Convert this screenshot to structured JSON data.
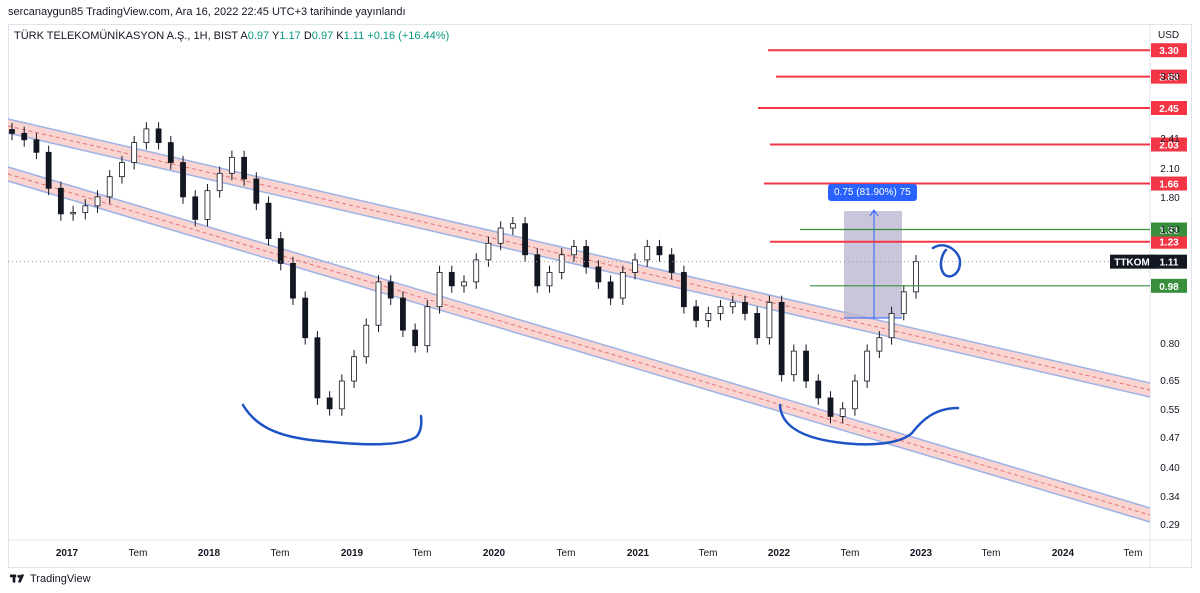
{
  "header": {
    "published": "sercanaygun85 TradingView.com, Ara 16, 2022 22:45 UTC+3 tarihinde yayınlandı"
  },
  "legend": {
    "symbol": "TÜRK TELEKOMÜNİKASYON A.Ş., 1H, BIST",
    "a_label": "A",
    "a_value": "0.97",
    "y_label": "Y",
    "y_value": "1.17",
    "d_label": "D",
    "d_value": "0.97",
    "k_label": "K",
    "k_value": "1.11",
    "change": "+0.16 (+16.44%)"
  },
  "currency": "USD",
  "footer": {
    "brand": "TradingView"
  },
  "measure": {
    "label": "0.75 (81.90%) 75"
  },
  "chart_data": {
    "type": "candlestick",
    "scale": "log",
    "ylim": [
      0.27,
      3.7
    ],
    "y_ticks": [
      "3.50",
      "2.41",
      "2.10",
      "1.80",
      "1.50",
      "0.80",
      "0.65",
      "0.55",
      "0.47",
      "0.40",
      "0.34",
      "0.29"
    ],
    "x_ticks": [
      {
        "label": "2017",
        "bold": true
      },
      {
        "label": "Tem",
        "bold": false
      },
      {
        "label": "2018",
        "bold": true
      },
      {
        "label": "Tem",
        "bold": false
      },
      {
        "label": "2019",
        "bold": true
      },
      {
        "label": "Tem",
        "bold": false
      },
      {
        "label": "2020",
        "bold": true
      },
      {
        "label": "Tem",
        "bold": false
      },
      {
        "label": "2021",
        "bold": true
      },
      {
        "label": "Tem",
        "bold": false
      },
      {
        "label": "2022",
        "bold": true
      },
      {
        "label": "Tem",
        "bold": false
      },
      {
        "label": "2023",
        "bold": true
      },
      {
        "label": "Tem",
        "bold": false
      },
      {
        "label": "2024",
        "bold": true
      },
      {
        "label": "Tem",
        "bold": false
      }
    ],
    "price_levels": [
      {
        "value": 3.3,
        "label": "3.30",
        "color": "#f23645"
      },
      {
        "value": 2.88,
        "label": "2.88",
        "color": "#f23645"
      },
      {
        "value": 2.45,
        "label": "2.45",
        "color": "#f23645"
      },
      {
        "value": 2.03,
        "label": "2.03",
        "color": "#f23645"
      },
      {
        "value": 1.66,
        "label": "1.66",
        "color": "#f23645"
      },
      {
        "value": 1.23,
        "label": "1.23",
        "color": "#f23645"
      },
      {
        "value": 1.31,
        "label": "1.31",
        "color": "#388e3c"
      },
      {
        "value": 0.98,
        "label": "0.98",
        "color": "#388e3c"
      }
    ],
    "current_price": {
      "symbol": "TTKOM",
      "value": "1.11"
    },
    "closes": [
      2.15,
      2.08,
      1.95,
      1.62,
      1.42,
      1.43,
      1.48,
      1.55,
      1.72,
      1.85,
      2.05,
      2.2,
      2.05,
      1.85,
      1.55,
      1.38,
      1.6,
      1.75,
      1.9,
      1.7,
      1.5,
      1.25,
      1.1,
      0.92,
      0.75,
      0.55,
      0.52,
      0.6,
      0.68,
      0.8,
      1.0,
      0.92,
      0.78,
      0.72,
      0.88,
      1.05,
      0.98,
      1.0,
      1.12,
      1.22,
      1.32,
      1.35,
      1.15,
      0.98,
      1.05,
      1.15,
      1.2,
      1.08,
      1.0,
      0.92,
      1.05,
      1.12,
      1.2,
      1.15,
      1.05,
      0.88,
      0.82,
      0.85,
      0.88,
      0.9,
      0.85,
      0.75,
      0.9,
      0.62,
      0.7,
      0.6,
      0.55,
      0.5,
      0.52,
      0.6,
      0.7,
      0.75,
      0.85,
      0.95,
      1.11
    ],
    "colors": {
      "up": "#ffffff",
      "down": "#131722",
      "channel_fill": "#f8c9c6",
      "channel_line": "#9db2e6",
      "measure_fill": "#b7b3cf",
      "annotation": "#1e53c6"
    }
  }
}
